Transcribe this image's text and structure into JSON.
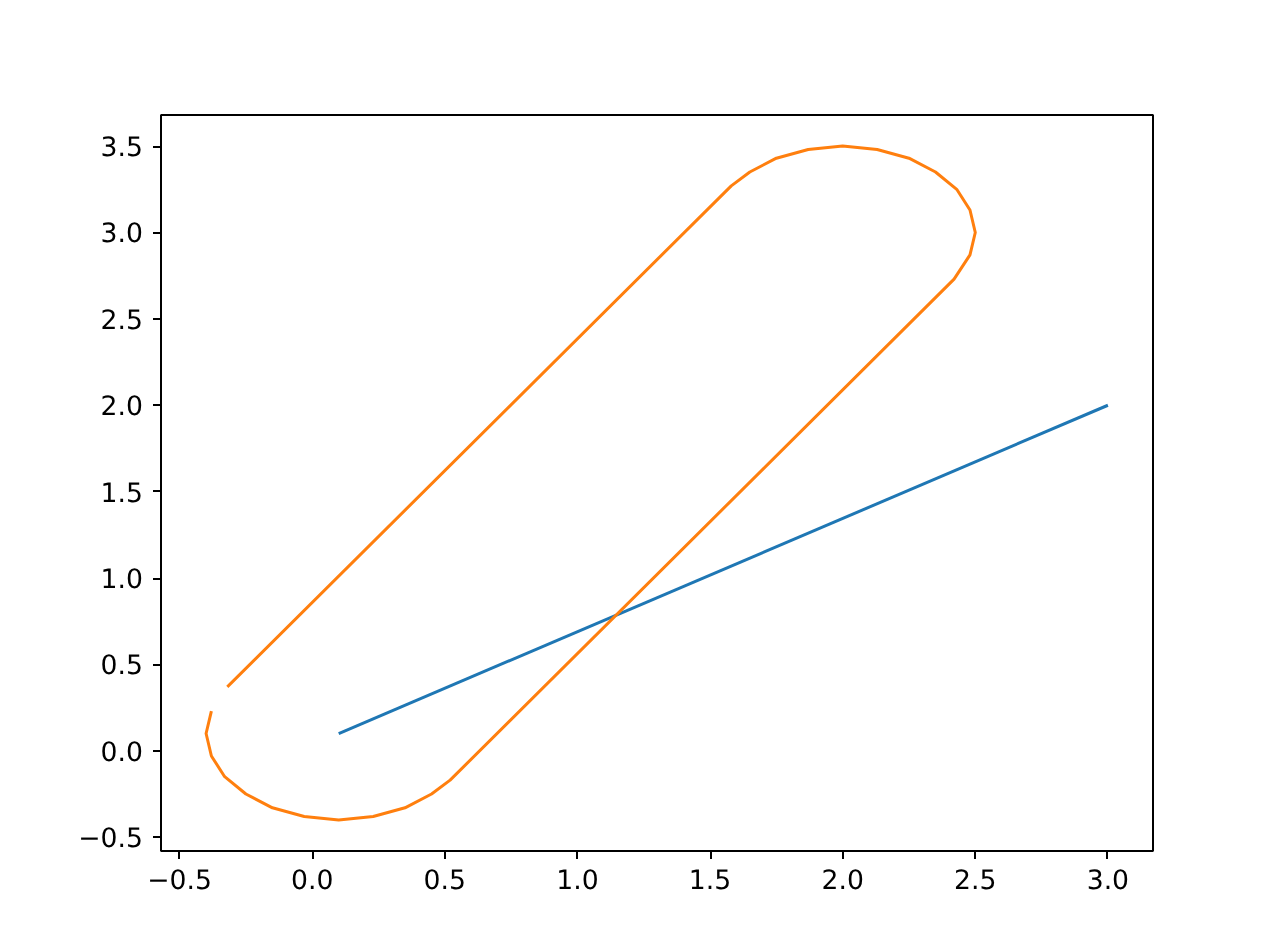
{
  "chart_data": {
    "type": "line",
    "xlim": [
      -0.57,
      3.17
    ],
    "ylim": [
      -0.58,
      3.68
    ],
    "xticks": [
      {
        "value": -0.5,
        "label": "−0.5"
      },
      {
        "value": 0,
        "label": "0.0"
      },
      0.5,
      {
        "value": 1,
        "label": "1.0"
      },
      1.5,
      {
        "value": 2,
        "label": "2.0"
      },
      2.5,
      {
        "value": 3,
        "label": "3.0"
      }
    ],
    "yticks": [
      {
        "value": -0.5,
        "label": "−0.5"
      },
      {
        "value": 0,
        "label": "0.0"
      },
      0.5,
      {
        "value": 1,
        "label": "1.0"
      },
      1.5,
      {
        "value": 2,
        "label": "2.0"
      },
      2.5,
      {
        "value": 3,
        "label": "3.0"
      },
      3.5
    ],
    "grid": false,
    "marker": "none",
    "line_style": "solid",
    "series": [
      {
        "color": "#1f77b4",
        "x": [
          0.1,
          3.0
        ],
        "values": [
          0.1,
          2.0
        ]
      },
      {
        "color": "#ff7f0e",
        "x": [
          -0.32,
          1.58,
          1.65,
          1.75,
          1.87,
          2.0,
          2.13,
          2.25,
          2.35,
          2.43,
          2.48,
          2.5,
          2.48,
          2.42,
          0.52,
          0.45,
          0.35,
          0.23,
          0.1,
          -0.03,
          -0.15,
          -0.25,
          -0.33,
          -0.38,
          -0.4,
          -0.38
        ],
        "values": [
          0.37,
          3.27,
          3.35,
          3.43,
          3.48,
          3.5,
          3.48,
          3.43,
          3.35,
          3.25,
          3.13,
          3.0,
          2.87,
          2.73,
          -0.17,
          -0.25,
          -0.33,
          -0.38,
          -0.4,
          -0.38,
          -0.33,
          -0.25,
          -0.15,
          -0.03,
          0.1,
          0.23
        ]
      }
    ]
  }
}
